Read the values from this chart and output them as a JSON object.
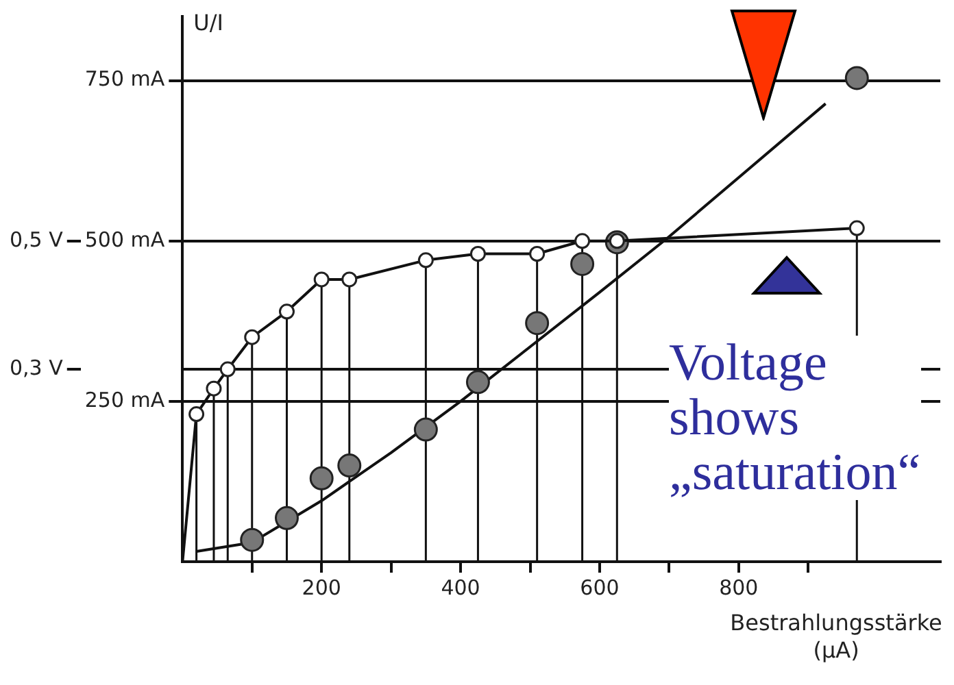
{
  "chart_data": {
    "type": "scatter",
    "ylabel": "U/I",
    "xlabel": "Bestrahlungsstärke\n(µA)",
    "xlim": [
      0,
      1090
    ],
    "xticks": [
      {
        "value": 100,
        "label": null
      },
      200,
      {
        "value": 300,
        "label": null
      },
      400,
      {
        "value": 500,
        "label": null
      },
      600,
      {
        "value": 700,
        "label": null
      },
      800,
      {
        "value": 900,
        "label": null
      }
    ],
    "ylim": [
      0,
      850
    ],
    "yticks": [
      {
        "value": 250,
        "label": "250 mA"
      },
      {
        "value": 500,
        "label": "500 mA"
      },
      {
        "value": 750,
        "label": "750 mA"
      }
    ],
    "y2lim": [
      0,
      0.85
    ],
    "y2ticks": [
      {
        "value": 0.3,
        "label": "0,3 V"
      },
      {
        "value": 0.5,
        "label": "0,5 V"
      }
    ],
    "grid": "y",
    "legend": false,
    "series": [
      {
        "type": "lollipop",
        "axis": "y2",
        "marker": "circle",
        "color": "#ffffff",
        "x": [
          20,
          45,
          65,
          100,
          150,
          200,
          240,
          350,
          425,
          510,
          575,
          625,
          970
        ],
        "values": [
          0.23,
          0.27,
          0.3,
          0.35,
          0.39,
          0.44,
          0.44,
          0.47,
          0.48,
          0.48,
          0.5,
          0.5,
          0.52
        ]
      },
      {
        "type": "line",
        "axis": "y2",
        "marker": "none",
        "color": "#111111",
        "x": [
          0,
          20,
          45,
          65,
          100,
          150,
          200,
          240,
          350,
          425,
          510,
          575,
          625,
          970
        ],
        "values": [
          0,
          0.23,
          0.27,
          0.3,
          0.35,
          0.39,
          0.44,
          0.44,
          0.47,
          0.48,
          0.48,
          0.5,
          0.5,
          0.52
        ]
      },
      {
        "marker": "circle",
        "color": "#777777",
        "x": [
          100,
          150,
          200,
          240,
          350,
          425,
          510,
          575,
          625,
          970
        ],
        "values": [
          34,
          68,
          130,
          150,
          206,
          280,
          372,
          464,
          498,
          754
        ]
      },
      {
        "type": "line",
        "marker": "none",
        "color": "#111111",
        "x": [
          20,
          100,
          200,
          300,
          400,
          500,
          600,
          697,
          925
        ],
        "values": [
          16,
          30,
          95,
          170,
          250,
          335,
          420,
          504,
          714
        ]
      }
    ],
    "annotations": [
      "Voltage\nshows\n„saturation“"
    ]
  }
}
